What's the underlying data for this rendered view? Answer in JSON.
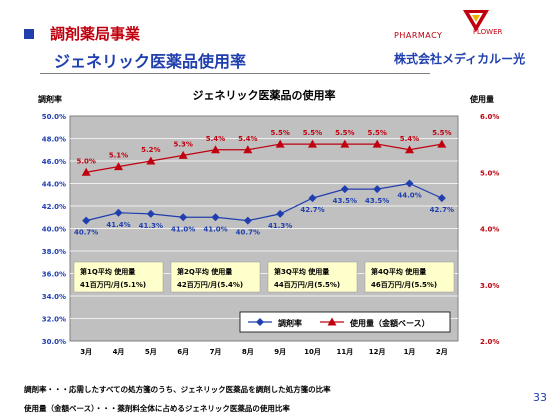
{
  "header": {
    "title_line1": "調剤薬局事業",
    "title_line2": "ジェネリック医薬品使用率"
  },
  "brand": {
    "pharmacy": "PHARMACY",
    "flower": "FLOWER",
    "company": "株式会社メディカルー光"
  },
  "page_number": "33",
  "footnotes": [
    "調剤率・・・応需したすべての処方箋のうち、ジェネリック医薬品を調剤した処方箋の比率",
    "使用量（金額ベース）・・・薬剤料全体に占めるジェネリック医薬品の使用比率"
  ],
  "colors": {
    "accent_red": "#c0000f",
    "accent_blue": "#1f3fae",
    "plot_bg": "#c0c0c0",
    "note_box": "#ffffcc"
  },
  "chart_data": {
    "type": "line",
    "title": "ジェネリック医薬品の使用率",
    "ylabel_left": "調剤率",
    "ylabel_right": "使用量",
    "categories": [
      "3月",
      "4月",
      "5月",
      "6月",
      "7月",
      "8月",
      "9月",
      "10月",
      "11月",
      "12月",
      "1月",
      "2月"
    ],
    "y_left_range": [
      30.0,
      50.0
    ],
    "y_left_ticks": [
      "30.0%",
      "32.0%",
      "34.0%",
      "36.0%",
      "38.0%",
      "40.0%",
      "42.0%",
      "44.0%",
      "46.0%",
      "48.0%",
      "50.0%"
    ],
    "y_right_range": [
      2.0,
      6.0
    ],
    "y_right_ticks": [
      "2.0%",
      "3.0%",
      "4.0%",
      "5.0%",
      "6.0%"
    ],
    "grid": true,
    "legend_position": "bottom-right",
    "series": [
      {
        "name": "調剤率",
        "axis": "left",
        "color": "#1f3fae",
        "marker": "diamond",
        "values": [
          40.7,
          41.4,
          41.3,
          41.0,
          41.0,
          40.7,
          41.3,
          42.7,
          43.5,
          43.5,
          44.0,
          42.7
        ],
        "labels": [
          "40.7%",
          "41.4%",
          "41.3%",
          "41.0%",
          "41.0%",
          "40.7%",
          "41.3%",
          "42.7%",
          "43.5%",
          "43.5%",
          "44.0%",
          "42.7%"
        ]
      },
      {
        "name": "使用量（金額ベース）",
        "axis": "right",
        "color": "#c0000f",
        "marker": "triangle",
        "values": [
          5.0,
          5.1,
          5.2,
          5.3,
          5.4,
          5.4,
          5.5,
          5.5,
          5.5,
          5.5,
          5.4,
          5.5
        ],
        "labels": [
          "5.0%",
          "5.1%",
          "5.2%",
          "5.3%",
          "5.4%",
          "5.4%",
          "5.5%",
          "5.5%",
          "5.5%",
          "5.5%",
          "5.4%",
          "5.5%"
        ]
      }
    ],
    "quarter_notes": [
      {
        "line1": "第1Q平均 使用量",
        "line2": "41百万円/月(5.1%)"
      },
      {
        "line1": "第2Q平均 使用量",
        "line2": "42百万円/月(5.4%)"
      },
      {
        "line1": "第3Q平均 使用量",
        "line2": "44百万円/月(5.5%)"
      },
      {
        "line1": "第4Q平均 使用量",
        "line2": "46百万円/月(5.5%)"
      }
    ]
  }
}
